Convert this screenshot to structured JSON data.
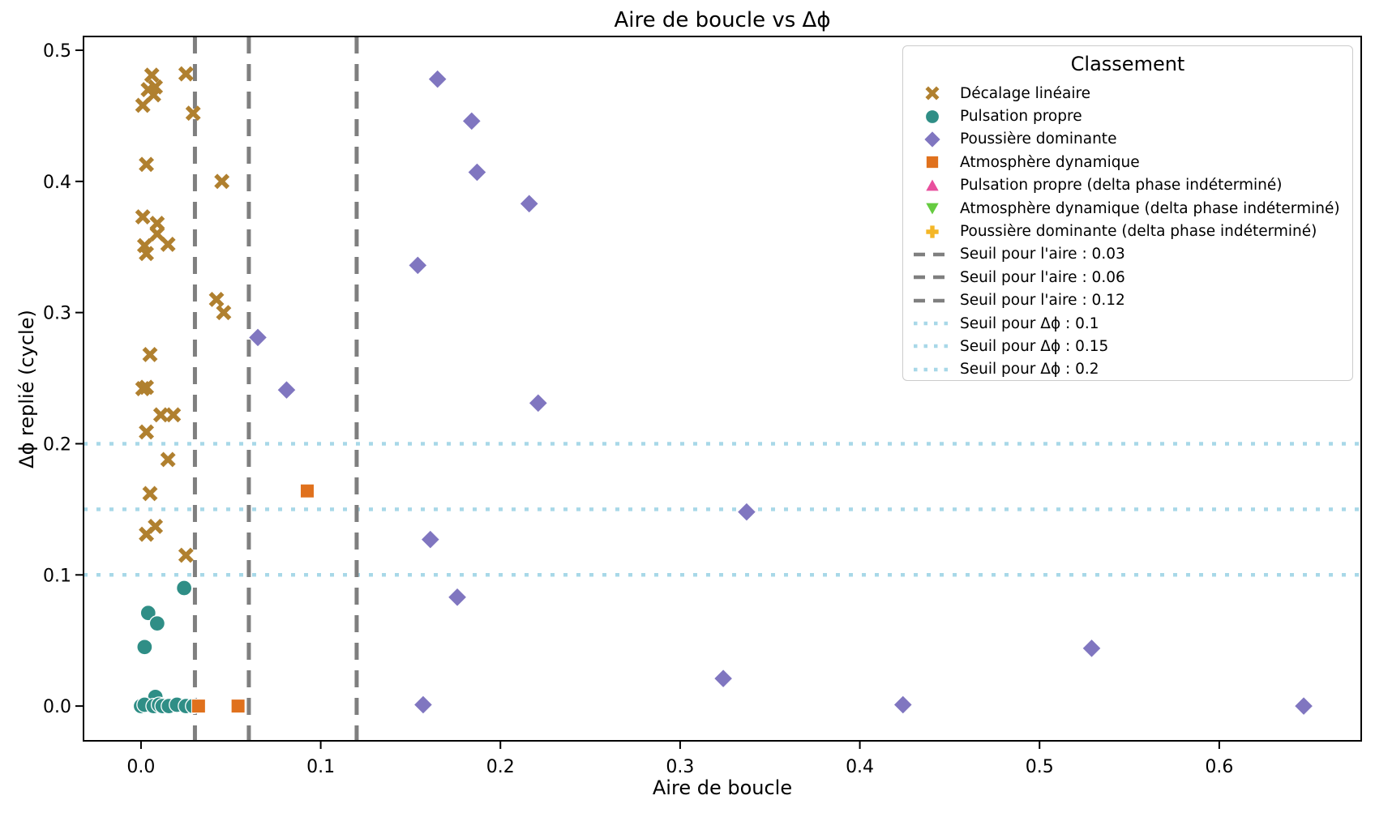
{
  "chart_data": {
    "type": "scatter",
    "title": "Aire de boucle vs Δϕ",
    "xlabel": "Aire de boucle",
    "ylabel": "Δϕ replié (cycle)",
    "legend_title": "Classement",
    "legend_position": "upper right",
    "grid": false,
    "xlim": [
      -0.032,
      0.679
    ],
    "ylim": [
      -0.0265,
      0.5105
    ],
    "x_tick_values": [
      0.0,
      0.1,
      0.2,
      0.3,
      0.4,
      0.5,
      0.6
    ],
    "x_tick_labels": [
      "0.0",
      "0.1",
      "0.2",
      "0.3",
      "0.4",
      "0.5",
      "0.6"
    ],
    "y_tick_values": [
      0.0,
      0.1,
      0.2,
      0.3,
      0.4,
      0.5
    ],
    "y_tick_labels": [
      "0.0",
      "0.1",
      "0.2",
      "0.3",
      "0.4",
      "0.5"
    ],
    "series": [
      {
        "name": "Décalage linéaire",
        "marker": "x",
        "color": "#b0802f",
        "points": [
          [
            0.006,
            0.481
          ],
          [
            0.025,
            0.482
          ],
          [
            0.008,
            0.472
          ],
          [
            0.004,
            0.47
          ],
          [
            0.007,
            0.466
          ],
          [
            0.001,
            0.458
          ],
          [
            0.029,
            0.452
          ],
          [
            0.003,
            0.413
          ],
          [
            0.045,
            0.4
          ],
          [
            0.001,
            0.373
          ],
          [
            0.009,
            0.368
          ],
          [
            0.009,
            0.36
          ],
          [
            0.015,
            0.352
          ],
          [
            0.002,
            0.351
          ],
          [
            0.003,
            0.345
          ],
          [
            0.042,
            0.31
          ],
          [
            0.046,
            0.3
          ],
          [
            0.005,
            0.268
          ],
          [
            0.001,
            0.242
          ],
          [
            0.003,
            0.243
          ],
          [
            0.011,
            0.222
          ],
          [
            0.018,
            0.222
          ],
          [
            0.003,
            0.209
          ],
          [
            0.015,
            0.188
          ],
          [
            0.005,
            0.162
          ],
          [
            0.008,
            0.137
          ],
          [
            0.003,
            0.131
          ],
          [
            0.025,
            0.115
          ]
        ]
      },
      {
        "name": "Pulsation propre",
        "marker": "circle",
        "color": "#2f8e86",
        "points": [
          [
            0.024,
            0.09
          ],
          [
            0.004,
            0.071
          ],
          [
            0.009,
            0.063
          ],
          [
            0.002,
            0.045
          ],
          [
            0.008,
            0.007
          ],
          [
            0.0,
            0.0
          ],
          [
            0.002,
            0.001
          ],
          [
            0.007,
            0.0
          ],
          [
            0.01,
            0.001
          ],
          [
            0.012,
            0.0
          ],
          [
            0.0155,
            0.0
          ],
          [
            0.02,
            0.001
          ],
          [
            0.025,
            0.0
          ],
          [
            0.029,
            0.0
          ]
        ]
      },
      {
        "name": "Poussière dominante",
        "marker": "diamond",
        "color": "#8076c0",
        "points": [
          [
            0.165,
            0.478
          ],
          [
            0.184,
            0.446
          ],
          [
            0.187,
            0.407
          ],
          [
            0.216,
            0.383
          ],
          [
            0.154,
            0.336
          ],
          [
            0.065,
            0.281
          ],
          [
            0.081,
            0.241
          ],
          [
            0.221,
            0.231
          ],
          [
            0.337,
            0.148
          ],
          [
            0.161,
            0.127
          ],
          [
            0.176,
            0.083
          ],
          [
            0.324,
            0.021
          ],
          [
            0.424,
            0.001
          ],
          [
            0.529,
            0.044
          ],
          [
            0.157,
            0.001
          ],
          [
            0.647,
            0.0
          ]
        ]
      },
      {
        "name": "Atmosphère dynamique",
        "marker": "square",
        "color": "#e0711d",
        "points": [
          [
            0.0925,
            0.164
          ],
          [
            0.032,
            0.0
          ],
          [
            0.054,
            0.0
          ]
        ]
      },
      {
        "name": "Pulsation propre (delta phase indéterminé)",
        "marker": "triangle-up",
        "color": "#e84f9d",
        "points": []
      },
      {
        "name": "Atmosphère dynamique (delta phase indéterminé)",
        "marker": "triangle-down",
        "color": "#65cb40",
        "points": []
      },
      {
        "name": "Poussière dominante (delta phase indéterminé)",
        "marker": "plus",
        "color": "#f4b626",
        "points": []
      }
    ],
    "vlines": [
      {
        "label": "Seuil pour l'aire : 0.03",
        "x": 0.03,
        "style": "dashed",
        "color": "#7f7f7f"
      },
      {
        "label": "Seuil pour l'aire : 0.06",
        "x": 0.06,
        "style": "dashed",
        "color": "#7f7f7f"
      },
      {
        "label": "Seuil pour l'aire : 0.12",
        "x": 0.12,
        "style": "dashed",
        "color": "#7f7f7f"
      }
    ],
    "hlines": [
      {
        "label": "Seuil pour Δϕ : 0.1",
        "y": 0.1,
        "style": "dotted",
        "color": "#a8d8e8"
      },
      {
        "label": "Seuil pour Δϕ : 0.15",
        "y": 0.15,
        "style": "dotted",
        "color": "#a8d8e8"
      },
      {
        "label": "Seuil pour Δϕ : 0.2",
        "y": 0.2,
        "style": "dotted",
        "color": "#a8d8e8"
      }
    ],
    "frame_color": "#000000",
    "tick_color": "#000000"
  }
}
